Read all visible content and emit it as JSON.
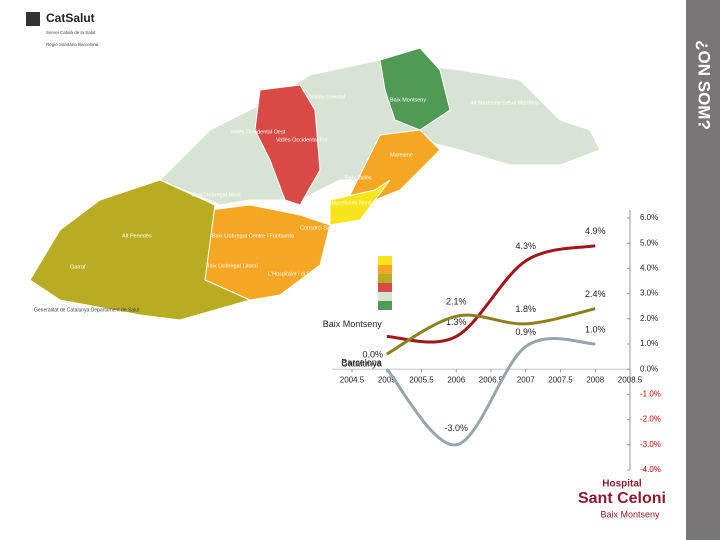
{
  "header": {
    "title": "¿ON SOM?"
  },
  "logo": {
    "name": "CatSalut",
    "subtitle": "Servei Català de la Salut",
    "region": "Regió Sanitària Barcelona"
  },
  "footer": {
    "government": "Generalitat de Catalunya Departament de Salut",
    "hospital": "Hospital",
    "hospital_name": "Sant Celoni",
    "hospital_area": "Baix Montseny"
  },
  "map": {
    "labels": [
      "Vallès Oriental",
      "Baix Montseny",
      "Alt Maresme Selva Marítima",
      "Vallès Occidental Oest",
      "Vallès Occidental Est",
      "Maresme",
      "Baix Vallès",
      "Baix Llobregat Nord",
      "Barcelonès Nord",
      "Consorci Sanitari de Barcelona",
      "Alt Penedès",
      "Baix Llobregat Centre i Fontsanta",
      "Baix Llobregat Litoral",
      "L'Hospitalet i el Prat de Llobregat",
      "Garraf"
    ]
  },
  "chart_data": {
    "type": "line",
    "x": [
      2005,
      2006,
      2007,
      2008
    ],
    "series": [
      {
        "name": "Baix Montseny",
        "color": "#a0161c",
        "values": [
          1.3,
          1.3,
          4.3,
          4.9
        ],
        "value_labels": [
          null,
          "1.3%",
          "4.3%",
          "4.9%"
        ]
      },
      {
        "name": "Barcelona",
        "color": "#98a4ae",
        "values": [
          0.0,
          -3.0,
          0.9,
          1.0
        ],
        "value_labels": [
          "0.0%",
          "-3.0%",
          "0.9%",
          "1.0%"
        ]
      },
      {
        "name": "Catalunya",
        "color": "#8c7f1e",
        "values": [
          0.6,
          2.1,
          1.8,
          2.4
        ],
        "value_labels": [
          null,
          "2.1%",
          "1.8%",
          "2.4%"
        ]
      }
    ],
    "xlim": [
      2004.5,
      2008.5
    ],
    "xticks": [
      {
        "value": 2004.5,
        "label": "2004.5"
      },
      2005,
      {
        "value": 2005.5,
        "label": "2005.5"
      },
      2006,
      {
        "value": 2006.5,
        "label": "2006.5"
      },
      2007,
      {
        "value": 2007.5,
        "label": "2007.5"
      },
      2008,
      {
        "value": 2008.5,
        "label": "2008.5"
      }
    ],
    "ylim": [
      -4,
      6
    ],
    "yticks": [
      {
        "value": -4,
        "label": "-4.0%"
      },
      {
        "value": -3,
        "label": "-3.0%"
      },
      {
        "value": -2,
        "label": "-2.0%"
      },
      {
        "value": -1,
        "label": "-1.0%"
      },
      {
        "value": 0,
        "label": "0.0%"
      },
      {
        "value": 1,
        "label": "1.0%"
      },
      {
        "value": 2,
        "label": "2.0%"
      },
      {
        "value": 3,
        "label": "3.0%"
      },
      {
        "value": 4,
        "label": "4.0%"
      },
      {
        "value": 5,
        "label": "5.0%"
      },
      {
        "value": 6,
        "label": "6.0%"
      }
    ]
  }
}
